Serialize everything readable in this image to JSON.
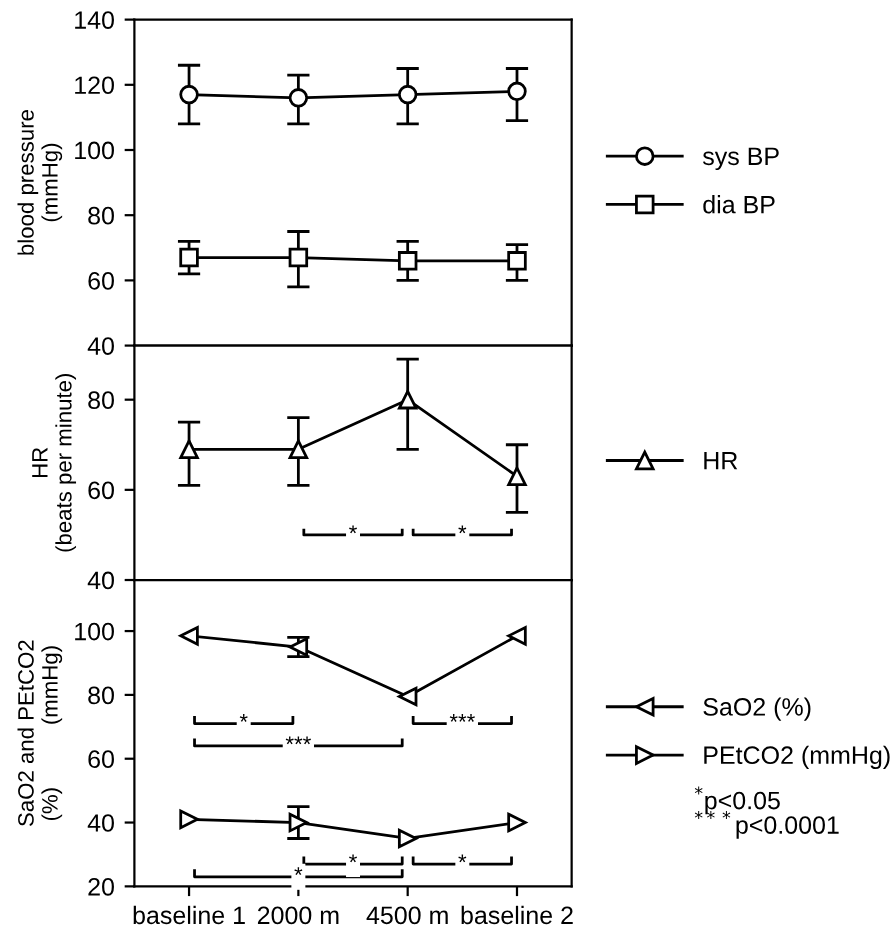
{
  "chart_data": [
    {
      "type": "line",
      "ylabel": "blood pressure\n(mmHg)",
      "ylim": [
        40,
        140
      ],
      "yticks": [
        40,
        60,
        80,
        100,
        120,
        140
      ],
      "tick_labels": "y",
      "legend": "right",
      "line_style": "solid",
      "series": [
        {
          "name": "sys BP",
          "color": "#000000",
          "marker": "circle",
          "values": [
            117,
            116,
            117,
            118
          ],
          "errors": [
            [
              108,
              126
            ],
            [
              108,
              123
            ],
            [
              108,
              125
            ],
            [
              109,
              125
            ]
          ]
        },
        {
          "name": "dia BP",
          "color": "#000000",
          "marker": "square",
          "values": [
            67,
            67,
            66,
            66
          ],
          "errors": [
            [
              62,
              72
            ],
            [
              58,
              75
            ],
            [
              60,
              72
            ],
            [
              60,
              71
            ]
          ]
        }
      ]
    },
    {
      "type": "line",
      "ylabel": "HR\n(beats per minute)",
      "ylim": [
        40,
        92
      ],
      "yticks": [
        40,
        60,
        80
      ],
      "tick_labels": "y",
      "legend": "right",
      "line_style": "solid",
      "series": [
        {
          "name": "HR",
          "color": "#000000",
          "marker": "triangle",
          "values": [
            69,
            69,
            80,
            63
          ],
          "errors": [
            [
              61,
              75
            ],
            [
              61,
              76
            ],
            [
              69,
              89
            ],
            [
              55,
              70
            ]
          ]
        }
      ],
      "annotations": [
        {
          "text": "*",
          "y": 50
        },
        {
          "text": "*",
          "y": 50
        }
      ]
    },
    {
      "type": "line",
      "ylabel": "SaO2 and PEtCO2\n(%)          (mmHg)",
      "categories": [
        "baseline 1",
        "2000 m",
        "4500 m",
        "baseline 2"
      ],
      "ylim": [
        20,
        116
      ],
      "yticks": [
        20,
        40,
        60,
        80,
        100
      ],
      "legend": "right",
      "line_style": "solid",
      "series": [
        {
          "name": "SaO2 (%)",
          "color": "#000000",
          "marker": "triangle_left",
          "values": [
            98.5,
            95,
            79.5,
            98.5
          ],
          "errors": [
            null,
            [
              92,
              98
            ],
            null,
            null
          ]
        },
        {
          "name": "PEtCO2 (mmHg)",
          "color": "#000000",
          "marker": "triangle_right",
          "values": [
            41,
            40,
            35,
            40
          ],
          "errors": [
            null,
            [
              35,
              45
            ],
            null,
            null
          ]
        }
      ],
      "annotations": [
        {
          "text": "*",
          "y": 71
        },
        {
          "text": "***",
          "y": 71
        },
        {
          "text": "***",
          "y": 64
        },
        {
          "text": "*",
          "y": 27
        },
        {
          "text": "*",
          "y": 27
        },
        {
          "text": "*",
          "y": 23
        },
        "$^{*}$p<0.05",
        "$^{***}$p<0.0001"
      ]
    }
  ]
}
